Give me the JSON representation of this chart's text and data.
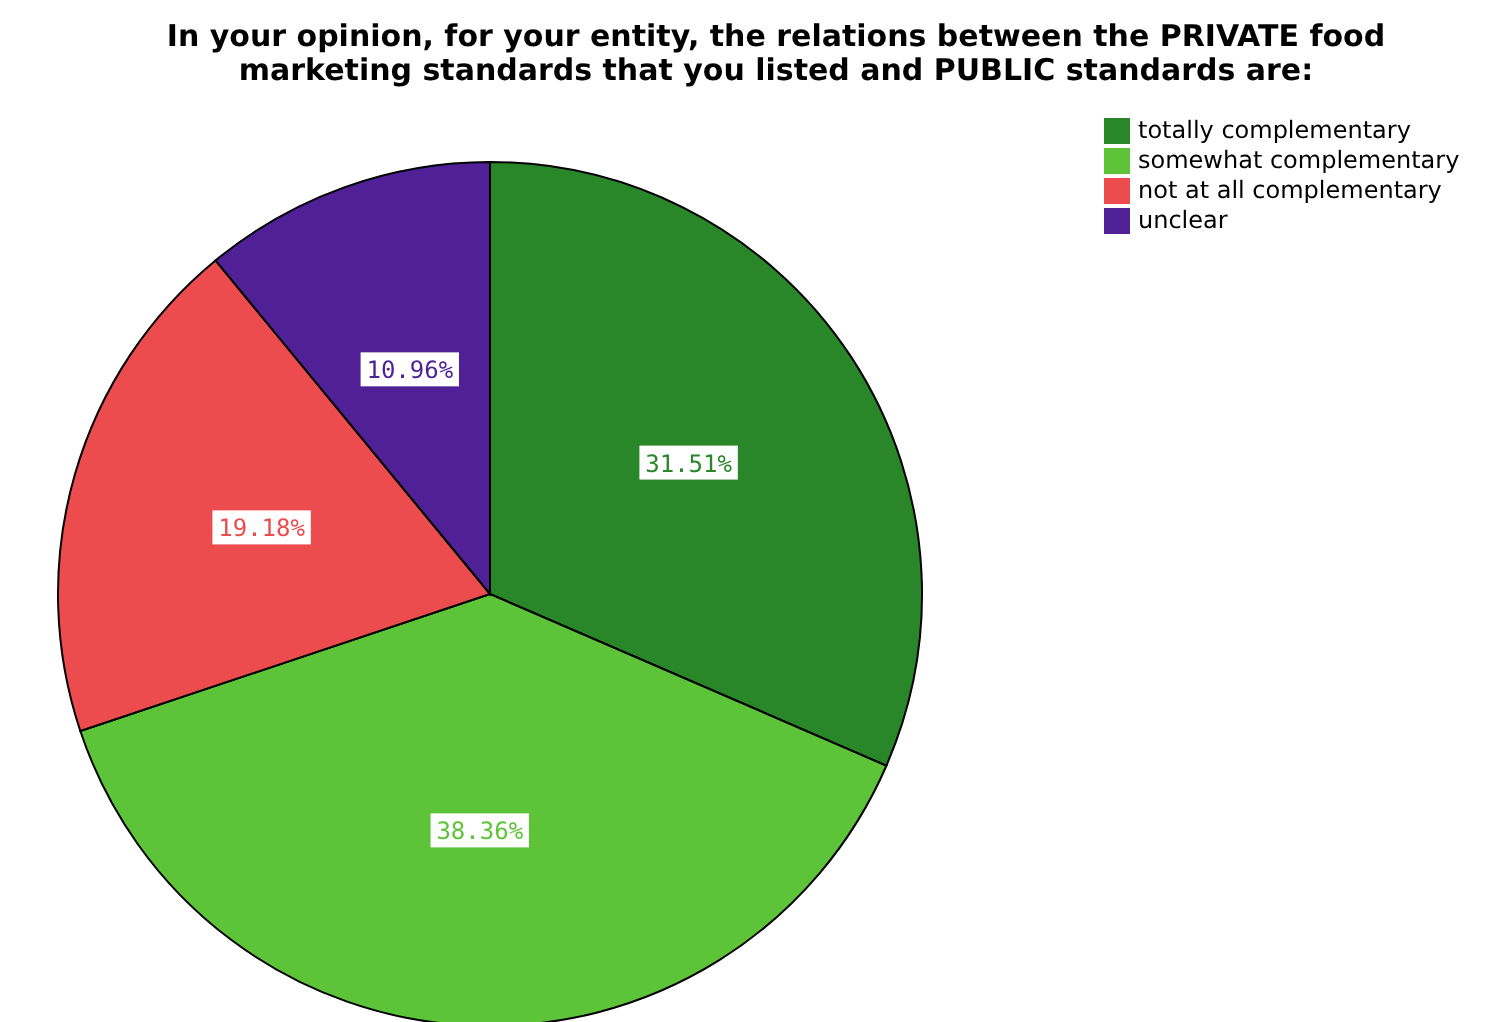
{
  "chart_data": {
    "type": "pie",
    "title": "In your opinion, for your entity, the relations between the PRIVATE food marketing standards that you listed and PUBLIC standards are:",
    "categories": [
      "totally complementary",
      "somewhat complementary",
      "not at all complementary",
      "unclear"
    ],
    "values": [
      31.51,
      38.36,
      19.18,
      10.96
    ],
    "colors": [
      "#29872a",
      "#5dc338",
      "#ec4c4d",
      "#4f2096"
    ],
    "value_labels": [
      "31.51%",
      "38.36%",
      "19.18%",
      "10.96%"
    ],
    "legend": "top right"
  }
}
